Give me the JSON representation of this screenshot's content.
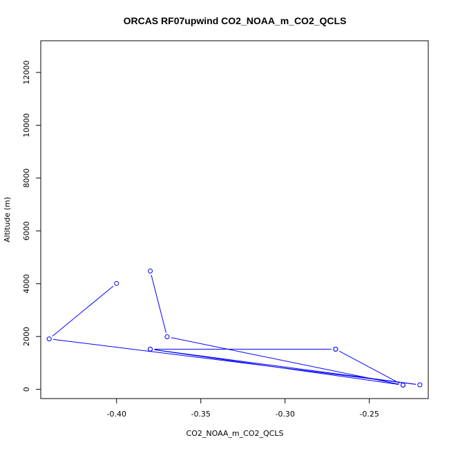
{
  "chart_data": {
    "type": "line",
    "title": "ORCAS RF07upwind CO2_NOAA_m_CO2_QCLS",
    "xlabel": "CO2_NOAA_m_CO2_QCLS",
    "ylabel": "Altitude (m)",
    "xlim": [
      -0.445,
      -0.215
    ],
    "ylim": [
      -350,
      13200
    ],
    "x_ticks": [
      -0.4,
      -0.35,
      -0.3,
      -0.25
    ],
    "x_tick_labels": [
      "-0.40",
      "-0.35",
      "-0.30",
      "-0.25"
    ],
    "y_ticks": [
      0,
      2000,
      4000,
      6000,
      8000,
      10000,
      12000
    ],
    "y_tick_labels": [
      "0",
      "2000",
      "4000",
      "6000",
      "8000",
      "10000",
      "12000"
    ],
    "series": [
      {
        "color": "#0000ff",
        "markers": "open-circle",
        "points": [
          {
            "x": -0.38,
            "y": 4480
          },
          {
            "x": -0.37,
            "y": 1990
          },
          {
            "x": -0.23,
            "y": 160
          },
          {
            "x": -0.38,
            "y": 1520
          },
          {
            "x": -0.22,
            "y": 170
          },
          {
            "x": -0.44,
            "y": 1910
          },
          {
            "x": -0.4,
            "y": 4010
          }
        ]
      },
      {
        "color": "#0000ff",
        "markers": "open-circle",
        "points": [
          {
            "x": -0.27,
            "y": 1520
          },
          {
            "x": -0.23,
            "y": 160
          }
        ]
      },
      {
        "color": "#0000ff",
        "markers": "open-circle",
        "points": [
          {
            "x": -0.38,
            "y": 1520
          },
          {
            "x": -0.27,
            "y": 1520
          }
        ]
      }
    ]
  }
}
